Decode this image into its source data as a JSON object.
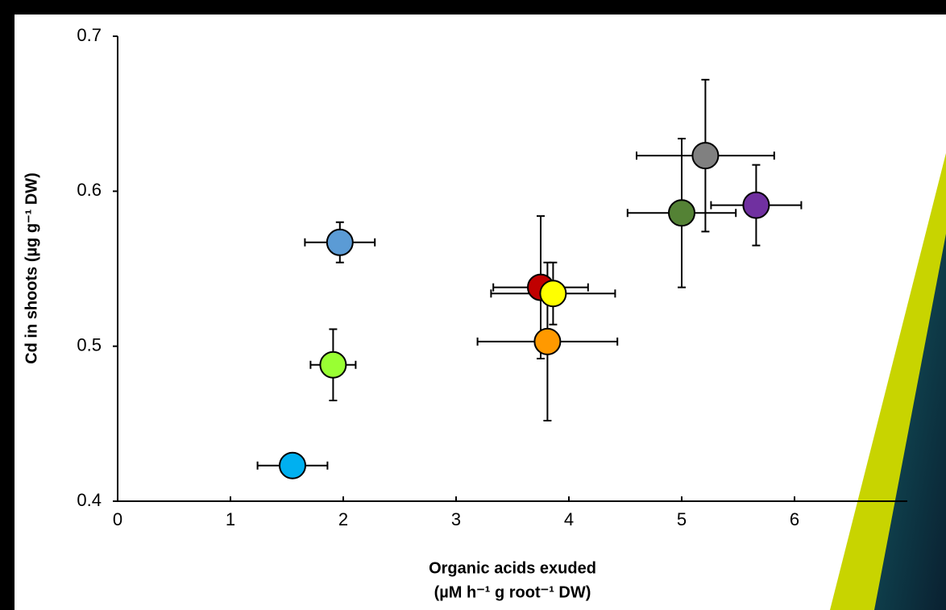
{
  "chart_data": {
    "type": "scatter",
    "x_label": [
      "Organic acids exuded",
      "(µM h⁻¹ g root⁻¹ DW)"
    ],
    "y_label": "Cd in shoots (µg g⁻¹ DW)",
    "xlim": [
      0,
      7
    ],
    "xticks": [
      0,
      1,
      2,
      3,
      4,
      5,
      6
    ],
    "ylim": [
      0.4,
      0.7
    ],
    "yticks": [
      0.4,
      0.5,
      0.6,
      0.7
    ],
    "series": [
      {
        "color": "#00b0f0",
        "x": [
          1.55
        ],
        "values": [
          0.423
        ],
        "xerr": [
          0.31
        ]
      },
      {
        "color": "#99ff33",
        "x": [
          1.91
        ],
        "values": [
          0.488
        ],
        "xerr": [
          0.2
        ],
        "yerr": [
          0.023
        ]
      },
      {
        "color": "#5b9bd5",
        "x": [
          1.97
        ],
        "values": [
          0.567
        ],
        "xerr": [
          0.31
        ],
        "yerr": [
          0.013
        ]
      },
      {
        "color": "#c00000",
        "x": [
          3.75
        ],
        "values": [
          0.538
        ],
        "xerr": [
          0.42
        ],
        "yerr": [
          0.046
        ]
      },
      {
        "color": "#ff9900",
        "x": [
          3.81
        ],
        "values": [
          0.503
        ],
        "xerr": [
          0.62
        ],
        "yerr": [
          0.051
        ]
      },
      {
        "color": "#ffff00",
        "x": [
          3.86
        ],
        "values": [
          0.534
        ],
        "xerr": [
          0.55
        ],
        "yerr": [
          0.02
        ]
      },
      {
        "color": "#548235",
        "x": [
          5.0
        ],
        "values": [
          0.586
        ],
        "xerr": [
          0.48
        ],
        "yerr": [
          0.048
        ]
      },
      {
        "color": "#808080",
        "x": [
          5.21
        ],
        "values": [
          0.623
        ],
        "xerr": [
          0.61
        ],
        "yerr": [
          0.049
        ]
      },
      {
        "color": "#7030a0",
        "x": [
          5.66
        ],
        "values": [
          0.591
        ],
        "xerr": [
          0.4
        ],
        "yerr": [
          0.026
        ]
      }
    ]
  }
}
